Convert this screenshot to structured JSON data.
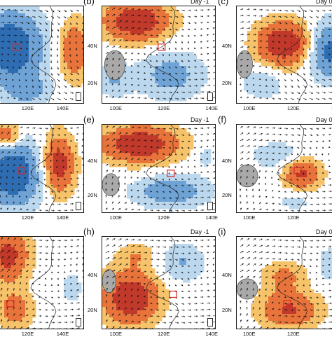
{
  "panels": [
    {
      "id": "a",
      "day": "",
      "letter": "",
      "lon_ticks": [
        "120E",
        "140E"
      ],
      "lat_ticks": [],
      "pattern": "a"
    },
    {
      "id": "b",
      "day": "Day -1",
      "letter": "(b)",
      "lon_ticks": [
        "100E",
        "120E",
        "140E"
      ],
      "lat_ticks": [
        "40N",
        "20N"
      ],
      "pattern": "b"
    },
    {
      "id": "c",
      "day": "Day 0",
      "letter": "(c)",
      "lon_ticks": [
        "100E",
        "120E",
        "140"
      ],
      "lat_ticks": [
        "40N",
        "20N"
      ],
      "pattern": "c"
    },
    {
      "id": "d",
      "day": "",
      "letter": "",
      "lon_ticks": [
        "120E",
        "140E"
      ],
      "lat_ticks": [],
      "pattern": "d"
    },
    {
      "id": "e",
      "day": "Day -1",
      "letter": "(e)",
      "lon_ticks": [
        "100E",
        "120E",
        "140E"
      ],
      "lat_ticks": [
        "40N",
        "20N"
      ],
      "pattern": "e"
    },
    {
      "id": "f",
      "day": "Day 0",
      "letter": "(f)",
      "lon_ticks": [
        "100E",
        "120E"
      ],
      "lat_ticks": [
        "40N",
        "20N"
      ],
      "pattern": "f"
    },
    {
      "id": "g",
      "day": "",
      "letter": "",
      "lon_ticks": [
        "120E",
        "140E"
      ],
      "lat_ticks": [],
      "pattern": "g"
    },
    {
      "id": "h",
      "day": "Day -1",
      "letter": "(h)",
      "lon_ticks": [
        "100E",
        "120E",
        "140E"
      ],
      "lat_ticks": [
        "40N",
        "20N"
      ],
      "pattern": "h"
    },
    {
      "id": "i",
      "day": "Day 0",
      "letter": "(i)",
      "lon_ticks": [
        "100E",
        "120E"
      ],
      "lat_ticks": [
        "40N",
        "20N"
      ],
      "pattern": "i"
    }
  ],
  "colors": {
    "warm_strong": "#c0392b",
    "warm_mid": "#e8743b",
    "warm_light": "#f6c36a",
    "cool_strong": "#2f6db3",
    "cool_mid": "#6fa3d6",
    "cool_light": "#bcd8ee",
    "land": "#a9a9a9",
    "box": "#d62828"
  }
}
